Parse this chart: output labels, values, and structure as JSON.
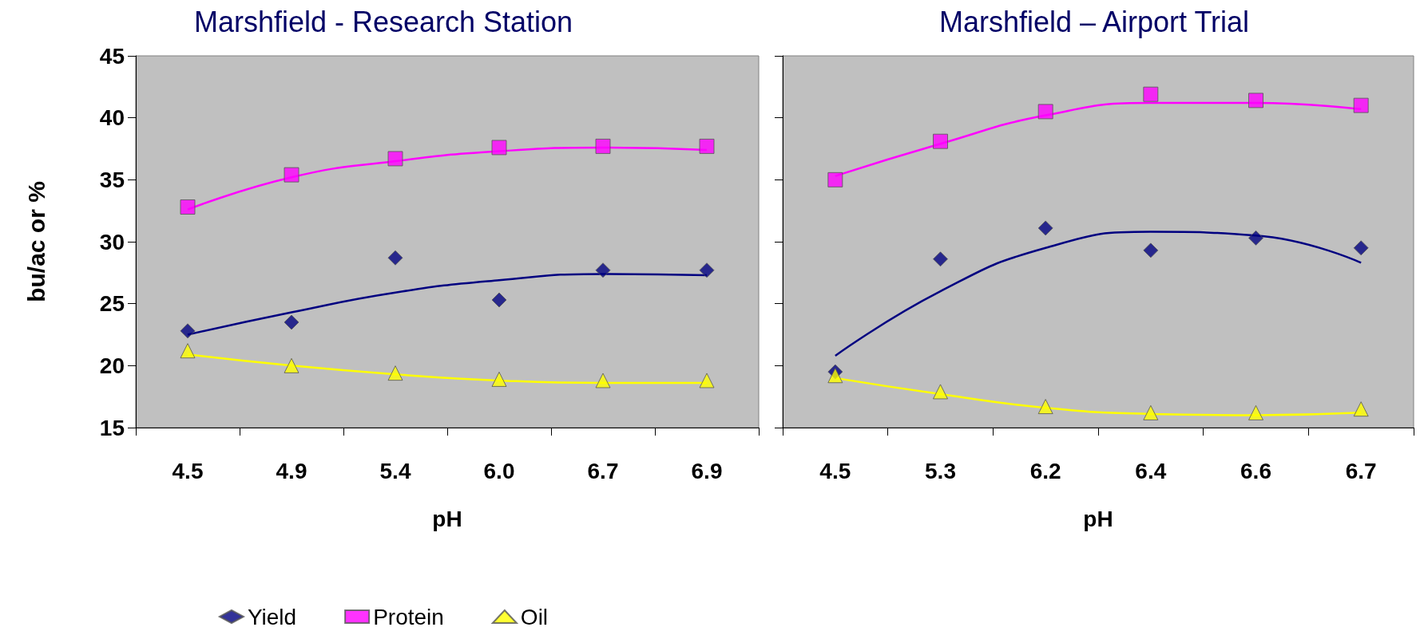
{
  "chart_data": [
    {
      "type": "scatter",
      "title": "Marshfield - Research Station",
      "xlabel": "pH",
      "ylabel": "bu/ac or %",
      "categories": [
        "4.5",
        "4.9",
        "5.4",
        "6.0",
        "6.7",
        "6.9"
      ],
      "ylim": [
        15,
        45
      ],
      "yticks": [
        15,
        20,
        25,
        30,
        35,
        40,
        45
      ],
      "grid": false,
      "legend": "bottom",
      "series": [
        {
          "name": "Yield",
          "color": "#000080",
          "marker": "diamond",
          "values": [
            22.8,
            23.5,
            28.7,
            25.3,
            27.7,
            27.7
          ]
        },
        {
          "name": "Protein",
          "color": "#ff00ff",
          "marker": "square",
          "values": [
            32.8,
            35.4,
            36.7,
            37.6,
            37.7,
            37.7
          ]
        },
        {
          "name": "Oil",
          "color": "#ffff00",
          "marker": "triangle",
          "values": [
            21.2,
            20.0,
            19.4,
            18.9,
            18.8,
            18.8
          ]
        },
        {
          "type": "line",
          "color": "#000080",
          "values": [
            22.5,
            24.3,
            25.9,
            26.9,
            27.4,
            27.3
          ]
        },
        {
          "type": "line",
          "color": "#ff00ff",
          "values": [
            32.6,
            35.2,
            36.5,
            37.3,
            37.6,
            37.4
          ]
        },
        {
          "type": "line",
          "color": "#ffff00",
          "values": [
            20.9,
            20.0,
            19.3,
            18.8,
            18.6,
            18.6
          ]
        }
      ]
    },
    {
      "type": "scatter",
      "title": "Marshfield – Airport Trial",
      "xlabel": "pH",
      "categories": [
        "4.5",
        "5.3",
        "6.2",
        "6.4",
        "6.6",
        "6.7"
      ],
      "ylim": [
        15,
        45
      ],
      "yticks": [
        15,
        20,
        25,
        30,
        35,
        40,
        45
      ],
      "grid": false,
      "tick_labels": "x",
      "series": [
        {
          "color": "#000080",
          "marker": "diamond",
          "values": [
            19.5,
            28.6,
            31.1,
            29.3,
            30.3,
            29.5
          ]
        },
        {
          "color": "#ff00ff",
          "marker": "square",
          "values": [
            35.0,
            38.1,
            40.5,
            41.9,
            41.4,
            41.0
          ]
        },
        {
          "color": "#ffff00",
          "marker": "triangle",
          "values": [
            19.2,
            17.9,
            16.7,
            16.2,
            16.2,
            16.5
          ]
        },
        {
          "type": "line",
          "color": "#000080",
          "values": [
            20.8,
            26.0,
            29.5,
            30.8,
            30.5,
            28.3
          ]
        },
        {
          "type": "line",
          "color": "#ff00ff",
          "values": [
            35.3,
            37.9,
            40.2,
            41.2,
            41.2,
            40.7
          ]
        },
        {
          "type": "line",
          "color": "#ffff00",
          "values": [
            19.0,
            17.7,
            16.6,
            16.1,
            16.0,
            16.2
          ]
        }
      ]
    }
  ]
}
